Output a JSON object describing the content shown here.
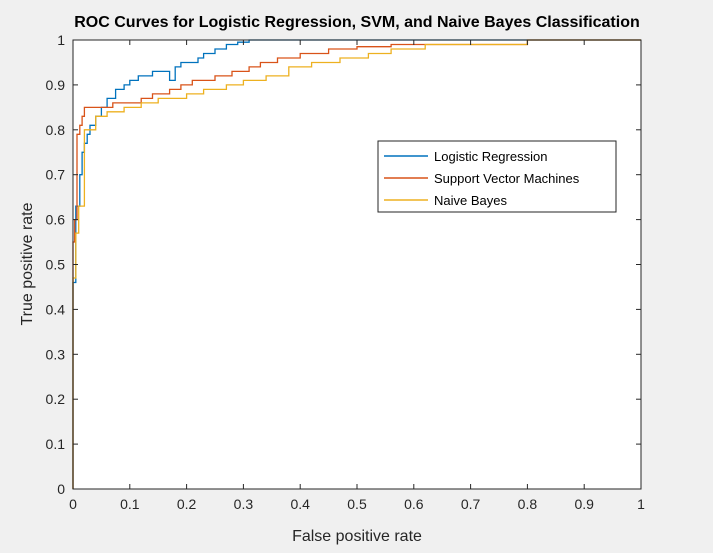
{
  "chart_data": {
    "type": "line",
    "title": "ROC Curves for Logistic Regression, SVM, and Naive Bayes Classification",
    "xlabel": "False positive rate",
    "ylabel": "True positive rate",
    "xlim": [
      0,
      1
    ],
    "ylim": [
      0,
      1
    ],
    "xticks": [
      "0",
      "0.1",
      "0.2",
      "0.3",
      "0.4",
      "0.5",
      "0.6",
      "0.7",
      "0.8",
      "0.9",
      "1"
    ],
    "yticks": [
      "0",
      "0.1",
      "0.2",
      "0.3",
      "0.4",
      "0.5",
      "0.6",
      "0.7",
      "0.8",
      "0.9",
      "1"
    ],
    "grid": false,
    "legend_position": "upper-right",
    "series": [
      {
        "name": "Logistic Regression",
        "color": "#0072bd",
        "x": [
          0,
          0,
          0.005,
          0.005,
          0.012,
          0.012,
          0.016,
          0.016,
          0.02,
          0.02,
          0.025,
          0.025,
          0.03,
          0.03,
          0.04,
          0.04,
          0.05,
          0.05,
          0.06,
          0.06,
          0.075,
          0.075,
          0.09,
          0.09,
          0.1,
          0.1,
          0.115,
          0.115,
          0.14,
          0.14,
          0.17,
          0.17,
          0.18,
          0.18,
          0.19,
          0.19,
          0.22,
          0.22,
          0.23,
          0.23,
          0.25,
          0.25,
          0.27,
          0.27,
          0.29,
          0.29,
          0.31,
          0.31,
          0.33,
          0.33,
          0.35,
          0.35,
          0.45,
          0.45,
          0.5,
          0.5,
          0.6,
          1
        ],
        "y": [
          0,
          0.46,
          0.46,
          0.63,
          0.63,
          0.7,
          0.7,
          0.75,
          0.75,
          0.77,
          0.77,
          0.79,
          0.79,
          0.81,
          0.81,
          0.83,
          0.83,
          0.85,
          0.85,
          0.87,
          0.87,
          0.89,
          0.89,
          0.9,
          0.9,
          0.91,
          0.91,
          0.92,
          0.92,
          0.93,
          0.93,
          0.91,
          0.91,
          0.94,
          0.94,
          0.95,
          0.95,
          0.96,
          0.96,
          0.97,
          0.97,
          0.98,
          0.98,
          0.99,
          0.99,
          0.995,
          0.995,
          1.0,
          1.0,
          1.0,
          1.0,
          1.0,
          1.0,
          1.0,
          1.0,
          1.0,
          1.0,
          1.0
        ]
      },
      {
        "name": "Support Vector Machines",
        "color": "#d95319",
        "x": [
          0,
          0,
          0.003,
          0.003,
          0.007,
          0.007,
          0.012,
          0.012,
          0.016,
          0.016,
          0.02,
          0.02,
          0.035,
          0.035,
          0.07,
          0.07,
          0.12,
          0.12,
          0.14,
          0.14,
          0.17,
          0.17,
          0.19,
          0.19,
          0.21,
          0.21,
          0.23,
          0.23,
          0.25,
          0.25,
          0.28,
          0.28,
          0.31,
          0.31,
          0.33,
          0.33,
          0.36,
          0.36,
          0.4,
          0.4,
          0.45,
          0.45,
          0.5,
          0.5,
          0.56,
          0.56,
          0.78,
          0.78,
          0.8,
          0.8,
          1
        ],
        "y": [
          0,
          0.55,
          0.55,
          0.6,
          0.6,
          0.79,
          0.79,
          0.81,
          0.81,
          0.83,
          0.83,
          0.85,
          0.85,
          0.85,
          0.85,
          0.86,
          0.86,
          0.87,
          0.87,
          0.88,
          0.88,
          0.89,
          0.89,
          0.9,
          0.9,
          0.91,
          0.91,
          0.91,
          0.91,
          0.92,
          0.92,
          0.93,
          0.93,
          0.94,
          0.94,
          0.95,
          0.95,
          0.96,
          0.96,
          0.97,
          0.97,
          0.98,
          0.98,
          0.985,
          0.985,
          0.99,
          0.99,
          0.99,
          0.99,
          1.0,
          1.0
        ]
      },
      {
        "name": "Naive Bayes",
        "color": "#edb120",
        "x": [
          0,
          0,
          0.005,
          0.005,
          0.01,
          0.01,
          0.02,
          0.02,
          0.04,
          0.04,
          0.06,
          0.06,
          0.09,
          0.09,
          0.12,
          0.12,
          0.15,
          0.15,
          0.2,
          0.2,
          0.23,
          0.23,
          0.27,
          0.27,
          0.3,
          0.3,
          0.34,
          0.34,
          0.38,
          0.38,
          0.42,
          0.42,
          0.47,
          0.47,
          0.52,
          0.52,
          0.56,
          0.56,
          0.62,
          0.62,
          0.8,
          0.8,
          1
        ],
        "y": [
          0,
          0.47,
          0.47,
          0.57,
          0.57,
          0.63,
          0.63,
          0.8,
          0.8,
          0.83,
          0.83,
          0.84,
          0.84,
          0.85,
          0.85,
          0.86,
          0.86,
          0.87,
          0.87,
          0.88,
          0.88,
          0.89,
          0.89,
          0.9,
          0.9,
          0.91,
          0.91,
          0.92,
          0.92,
          0.94,
          0.94,
          0.95,
          0.95,
          0.96,
          0.96,
          0.97,
          0.97,
          0.98,
          0.98,
          0.99,
          0.99,
          1.0,
          1.0
        ]
      }
    ]
  }
}
